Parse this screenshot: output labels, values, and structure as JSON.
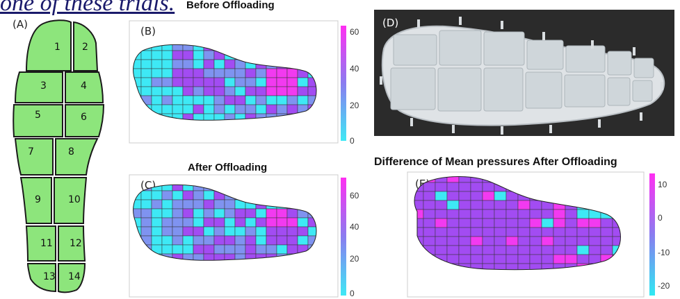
{
  "header_text": "one of these trials.",
  "panel_a": {
    "label": "(A)",
    "zones": [
      "1",
      "2",
      "3",
      "4",
      "5",
      "6",
      "7",
      "8",
      "9",
      "10",
      "11",
      "12",
      "13",
      "14"
    ],
    "zone_color": "#8de57c"
  },
  "panel_b": {
    "label": "(B)",
    "title": "Before Offloading",
    "colorbar_ticks": [
      "60",
      "40",
      "20",
      "0"
    ]
  },
  "panel_c": {
    "label": "(C)",
    "title": "After Offloading",
    "colorbar_ticks": [
      "60",
      "40",
      "20",
      "0"
    ]
  },
  "panel_d": {
    "label": "(D)"
  },
  "panel_e": {
    "label": "(E)",
    "title": "Difference of Mean pressures After Offloading",
    "colorbar_ticks": [
      "10",
      "0",
      "-10",
      "-20"
    ]
  },
  "colors": {
    "cyan": "#3ee9f5",
    "purple": "#a24cf2",
    "magenta": "#f23af0",
    "blue": "#7f93f0",
    "insole_bg": "#2b2b2b"
  }
}
